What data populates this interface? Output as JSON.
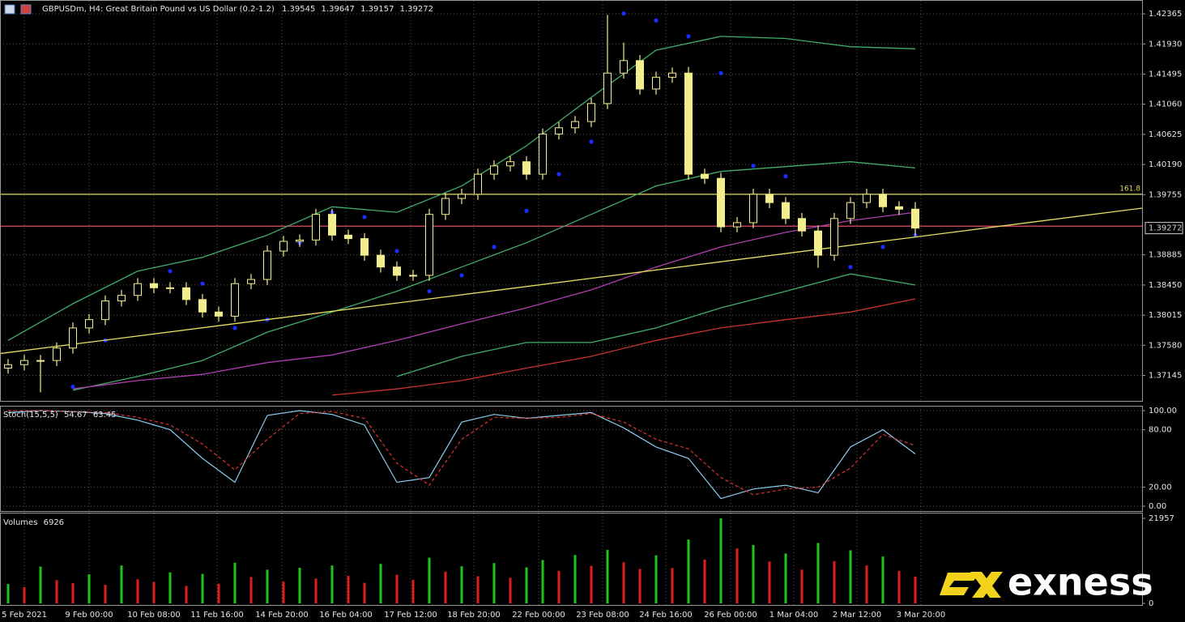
{
  "chart_data": [
    {
      "type": "candlestick",
      "title": "GBPUSDm, H4:  Great Britain Pound vs US Dollar (0.2-1.2)",
      "color": "#f3ee8c",
      "open": [
        1.3725,
        1.373,
        1.3736,
        1.3736,
        1.3754,
        1.3783,
        1.3795,
        1.3822,
        1.383,
        1.3847,
        1.3841,
        1.3841,
        1.3824,
        1.3806,
        1.38,
        1.3847,
        1.3853,
        1.3894,
        1.3908,
        1.391,
        1.3947,
        1.3917,
        1.3912,
        1.3888,
        1.3871,
        1.3859,
        1.3859,
        1.3947,
        1.397,
        1.3976,
        1.4005,
        1.4017,
        1.4023,
        1.4005,
        1.4063,
        1.4072,
        1.4081,
        1.4107,
        1.4151,
        1.4169,
        1.4128,
        1.4145,
        1.4151,
        1.4005,
        1.3999,
        1.3929,
        1.3935,
        1.3976,
        1.3964,
        1.3941,
        1.3923,
        1.3888,
        1.3941,
        1.3964,
        1.3976,
        1.3958,
        1.39545
      ],
      "high": [
        1.3738,
        1.3744,
        1.3744,
        1.3762,
        1.3791,
        1.3803,
        1.383,
        1.3838,
        1.3855,
        1.3855,
        1.3849,
        1.3849,
        1.3832,
        1.3814,
        1.3855,
        1.3861,
        1.3902,
        1.3916,
        1.3918,
        1.3955,
        1.3955,
        1.3925,
        1.392,
        1.3896,
        1.3879,
        1.3867,
        1.3955,
        1.3978,
        1.3984,
        1.4013,
        1.4025,
        1.4031,
        1.4031,
        1.4071,
        1.408,
        1.4089,
        1.4115,
        1.4235,
        1.4195,
        1.4177,
        1.4153,
        1.4159,
        1.416,
        1.4013,
        1.4007,
        1.3943,
        1.3984,
        1.3984,
        1.3972,
        1.3949,
        1.3931,
        1.3949,
        1.3972,
        1.3984,
        1.3984,
        1.3966,
        1.39647
      ],
      "low": [
        1.3717,
        1.3722,
        1.369,
        1.3728,
        1.3746,
        1.3775,
        1.3787,
        1.3814,
        1.3822,
        1.3833,
        1.3833,
        1.3816,
        1.3798,
        1.3792,
        1.3792,
        1.3839,
        1.3845,
        1.3886,
        1.39,
        1.3902,
        1.3909,
        1.3904,
        1.388,
        1.3863,
        1.3851,
        1.3851,
        1.3851,
        1.3939,
        1.3962,
        1.3968,
        1.3997,
        1.4009,
        1.3997,
        1.3997,
        1.4055,
        1.4064,
        1.4073,
        1.4099,
        1.4143,
        1.412,
        1.412,
        1.4137,
        1.3997,
        1.3991,
        1.3921,
        1.3921,
        1.3927,
        1.3956,
        1.3933,
        1.3915,
        1.387,
        1.388,
        1.3933,
        1.3956,
        1.395,
        1.3946,
        1.39157
      ],
      "close": [
        1.373,
        1.3736,
        1.3736,
        1.3754,
        1.3783,
        1.3795,
        1.3822,
        1.383,
        1.3847,
        1.3841,
        1.3841,
        1.3824,
        1.3806,
        1.38,
        1.3847,
        1.3853,
        1.3894,
        1.3908,
        1.391,
        1.3947,
        1.3917,
        1.3912,
        1.3888,
        1.3871,
        1.3859,
        1.3859,
        1.3947,
        1.397,
        1.3976,
        1.4005,
        1.4017,
        1.4023,
        1.4005,
        1.4063,
        1.4072,
        1.4081,
        1.4107,
        1.4151,
        1.4169,
        1.4128,
        1.4145,
        1.4151,
        1.4005,
        1.3999,
        1.3929,
        1.3935,
        1.3976,
        1.3964,
        1.3941,
        1.3923,
        1.3888,
        1.3941,
        1.3964,
        1.3976,
        1.3958,
        1.39545,
        1.39272
      ],
      "xlim": [
        -0.5,
        70
      ],
      "ylim": [
        1.368,
        1.4253
      ],
      "yticks": [
        1.42365,
        {
          "value": 1.4193,
          "label": "1.41930"
        },
        1.41495,
        {
          "value": 1.4106,
          "label": "1.41060"
        },
        1.40625,
        {
          "value": 1.4019,
          "label": "1.40190"
        },
        1.39755,
        1.38885,
        {
          "value": 1.3845,
          "label": "1.38450"
        },
        1.38015,
        {
          "value": 1.3758,
          "label": "1.37580"
        },
        1.37145
      ],
      "xticks": [
        {
          "value": 1,
          "label": "5 Feb 2021"
        },
        {
          "value": 5,
          "label": "9 Feb 00:00"
        },
        {
          "value": 9,
          "label": "10 Feb 08:00"
        },
        {
          "value": 12.9,
          "label": "11 Feb 16:00"
        },
        {
          "value": 16.9,
          "label": "14 Feb 20:00"
        },
        {
          "value": 20.85,
          "label": "16 Feb 04:00"
        },
        {
          "value": 24.85,
          "label": "17 Feb 12:00"
        },
        {
          "value": 28.75,
          "label": "18 Feb 20:00"
        },
        {
          "value": 32.75,
          "label": "22 Feb 00:00"
        },
        {
          "value": 36.7,
          "label": "23 Feb 08:00"
        },
        {
          "value": 40.6,
          "label": "24 Feb 16:00"
        },
        {
          "value": 44.6,
          "label": "26 Feb 00:00"
        },
        {
          "value": 48.5,
          "label": "1 Mar 04:00"
        },
        {
          "value": 52.4,
          "label": "2 Mar 12:00"
        },
        {
          "value": 56.35,
          "label": "3 Mar 20:00"
        }
      ],
      "grid": true,
      "overlays": [
        {
          "type": "line",
          "color": "#3fae6a",
          "x": [
            0,
            4,
            8,
            12,
            16,
            20,
            24,
            28,
            32,
            36,
            40,
            44,
            48,
            52,
            56
          ],
          "values": [
            1.3765,
            1.3818,
            1.3865,
            1.3885,
            1.3917,
            1.3958,
            1.395,
            1.3988,
            1.4046,
            1.4116,
            1.4184,
            1.4204,
            1.4201,
            1.4189,
            1.4186
          ]
        },
        {
          "type": "line",
          "color": "#3fae6a",
          "x": [
            4,
            8,
            12,
            16,
            20,
            24,
            28,
            32,
            36,
            40,
            44,
            48,
            52,
            56
          ],
          "values": [
            1.3693,
            1.3713,
            1.3736,
            1.3777,
            1.3806,
            1.3836,
            1.3871,
            1.3906,
            1.3947,
            1.3988,
            1.4009,
            1.4016,
            1.4023,
            1.4014
          ]
        },
        {
          "type": "line",
          "color": "#3fae6a",
          "x": [
            24,
            28,
            32,
            36,
            40,
            44,
            48,
            52,
            56
          ],
          "values": [
            1.3713,
            1.3742,
            1.3762,
            1.3762,
            1.3783,
            1.3812,
            1.3836,
            1.3861,
            1.3845
          ]
        },
        {
          "type": "line",
          "color": "#b03cb0",
          "x": [
            4,
            8,
            12,
            16,
            20,
            24,
            28,
            32,
            36,
            40,
            44,
            48,
            52,
            56
          ],
          "values": [
            1.3695,
            1.3707,
            1.3716,
            1.3733,
            1.3744,
            1.3765,
            1.3789,
            1.3812,
            1.3838,
            1.3871,
            1.39,
            1.3921,
            1.3938,
            1.395
          ]
        },
        {
          "type": "line",
          "color": "#c83232",
          "x": [
            20,
            24,
            28,
            32,
            36,
            40,
            44,
            48,
            52,
            56
          ],
          "values": [
            1.3686,
            1.3695,
            1.3707,
            1.3725,
            1.3742,
            1.3765,
            1.3783,
            1.3795,
            1.3806,
            1.3825
          ]
        },
        {
          "type": "dots",
          "color": "#1c2cff",
          "x": [
            4,
            6,
            8,
            10,
            12,
            14,
            16,
            18,
            20,
            22,
            24,
            26,
            28,
            30,
            32,
            34,
            36,
            38,
            40,
            42,
            44,
            46,
            48,
            52,
            54,
            56
          ],
          "values": [
            1.3698,
            1.3765,
            1.3836,
            1.3865,
            1.3847,
            1.3783,
            1.3795,
            1.3906,
            1.395,
            1.3943,
            1.3894,
            1.3836,
            1.3859,
            1.39,
            1.3952,
            1.4005,
            1.4052,
            1.4237,
            1.4227,
            1.4204,
            1.4151,
            1.4017,
            1.4002,
            1.3871,
            1.39,
            1.3917
          ]
        }
      ],
      "levels": [
        {
          "value": 1.3976,
          "name": "161.8",
          "color": "#e4dc5c"
        },
        {
          "value": 1.393,
          "color": "#e0506a"
        }
      ],
      "trendline": {
        "x": [
          -0.5,
          70
        ],
        "values": [
          1.3746,
          1.3956
        ],
        "color": "#e8e060"
      }
    },
    {
      "type": "line",
      "title": "Stoch(15,5,5)",
      "x": [
        0,
        2,
        4,
        6,
        8,
        10,
        12,
        14,
        16,
        18,
        20,
        22,
        24,
        26,
        28,
        30,
        32,
        34,
        36,
        38,
        40,
        42,
        44,
        46,
        48,
        50,
        52,
        54,
        56
      ],
      "series": [
        {
          "color": "#8ccdf0",
          "values": [
            98,
            100,
            99,
            97,
            90,
            80,
            50,
            25,
            95,
            100,
            96,
            85,
            25,
            30,
            88,
            96,
            92,
            95,
            98,
            82,
            62,
            50,
            8,
            18,
            22,
            14,
            62,
            80,
            54.67
          ]
        },
        {
          "color": "#e03030",
          "dash": true,
          "values": [
            100,
            100,
            99,
            98,
            93,
            85,
            65,
            38,
            70,
            97,
            99,
            92,
            45,
            22,
            70,
            93,
            92,
            93,
            97,
            88,
            70,
            60,
            30,
            12,
            18,
            20,
            40,
            75,
            63.45
          ]
        }
      ],
      "xlim": [
        -0.5,
        70
      ],
      "ylim": [
        -4.2,
        103.4
      ],
      "yticks": [
        {
          "value": 100,
          "label": "100.00"
        },
        {
          "value": 80,
          "label": "80.00"
        },
        {
          "value": 20,
          "label": "20.00"
        },
        {
          "value": 0,
          "label": "0.00"
        }
      ],
      "grid": true
    },
    {
      "type": "bar",
      "title": "Volumes",
      "values": [
        5000,
        4200,
        9500,
        6000,
        5200,
        7500,
        4800,
        9800,
        6200,
        5500,
        8000,
        4500,
        7600,
        5100,
        10500,
        6800,
        8700,
        5600,
        9200,
        6400,
        9800,
        7100,
        5300,
        10200,
        7400,
        6100,
        11800,
        8200,
        9600,
        7000,
        10400,
        6600,
        9300,
        11200,
        8400,
        12500,
        9700,
        13800,
        10600,
        8900,
        12400,
        9100,
        16500,
        11300,
        21957,
        14200,
        15100,
        10800,
        12900,
        8700,
        15600,
        10900,
        13700,
        9800,
        12100,
        8400,
        6926
      ],
      "up_color": "#1fc41f",
      "down_color": "#e01e1e",
      "xlim": [
        -0.5,
        70
      ],
      "ylim": [
        0,
        22800
      ],
      "yticks": [
        21957,
        0
      ]
    }
  ],
  "watermark": "exness"
}
